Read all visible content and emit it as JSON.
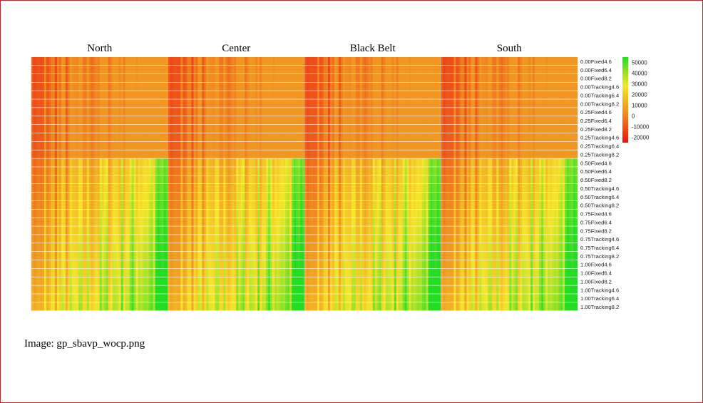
{
  "chart_data": {
    "type": "heatmap",
    "column_groups": [
      "North",
      "Center",
      "Black Belt",
      "South"
    ],
    "row_labels": [
      "0.00Fixed4.6",
      "0.00Fixed6.4",
      "0.00Fixed8.2",
      "0.00Tracking4.6",
      "0.00Tracking6.4",
      "0.00Tracking8.2",
      "0.25Fixed4.6",
      "0.25Fixed6.4",
      "0.25Fixed8.2",
      "0.25Tracking4.6",
      "0.25Tracking6.4",
      "0.25Tracking8.2",
      "0.50Fixed4.6",
      "0.50Fixed6.4",
      "0.50Fixed8.2",
      "0.50Tracking4.6",
      "0.50Tracking6.4",
      "0.50Tracking8.2",
      "0.75Fixed4.6",
      "0.75Fixed6.4",
      "0.75Fixed8.2",
      "0.75Tracking4.6",
      "0.75Tracking6.4",
      "0.75Tracking8.2",
      "1.00Fixed4.6",
      "1.00Fixed6.4",
      "1.00Fixed8.2",
      "1.00Tracking4.6",
      "1.00Tracking6.4",
      "1.00Tracking8.2"
    ],
    "colorbar": {
      "ticks": [
        50000,
        40000,
        30000,
        20000,
        10000,
        0,
        -10000,
        -20000
      ],
      "range": [
        -25000,
        55000
      ],
      "colors": [
        "#ee1010",
        "#f08a20",
        "#f6e62a",
        "#22dd22"
      ]
    },
    "grid": true,
    "legend_position": "right"
  },
  "caption": "Image: gp_sbavp_wocp.png"
}
